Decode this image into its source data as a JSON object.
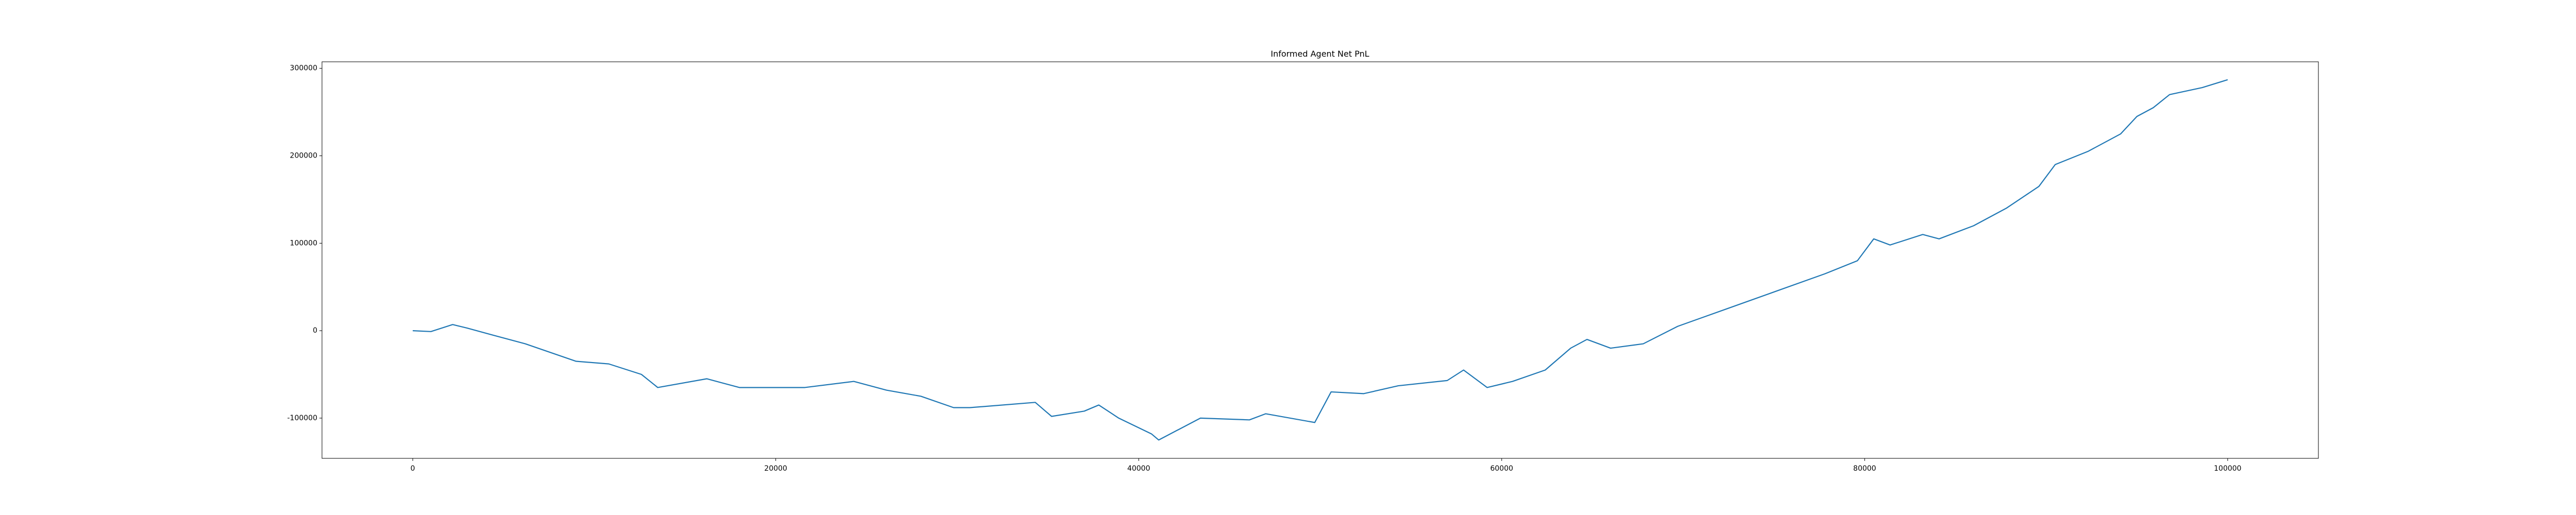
{
  "chart_data": {
    "type": "line",
    "title": "Informed Agent Net PnL",
    "x": [
      0,
      1000,
      2200,
      3000,
      4400,
      6200,
      9000,
      10800,
      12600,
      13500,
      16200,
      18000,
      20000,
      21600,
      24300,
      26100,
      28000,
      29800,
      30700,
      34300,
      35200,
      37000,
      37800,
      38900,
      40700,
      41100,
      43400,
      46100,
      47000,
      49700,
      50600,
      52400,
      54300,
      57000,
      57900,
      59200,
      60600,
      62400,
      63800,
      64700,
      66000,
      67800,
      69700,
      72400,
      75100,
      77800,
      79600,
      80500,
      81400,
      83200,
      84100,
      86000,
      87800,
      89600,
      90500,
      92300,
      94100,
      95000,
      95900,
      96800,
      98600,
      100000
    ],
    "series": [
      {
        "name": "Informed Agent Net PnL",
        "color": "#1f77b4",
        "values": [
          0,
          -1000,
          7000,
          3000,
          -5000,
          -15000,
          -35000,
          -38000,
          -50000,
          -65000,
          -55000,
          -65000,
          -65000,
          -65000,
          -58000,
          -68000,
          -75000,
          -88000,
          -88000,
          -82000,
          -98000,
          -92000,
          -85000,
          -100000,
          -118000,
          -125000,
          -100000,
          -102000,
          -95000,
          -105000,
          -70000,
          -72000,
          -63000,
          -57000,
          -45000,
          -65000,
          -58000,
          -45000,
          -20000,
          -10000,
          -20000,
          -15000,
          5000,
          25000,
          45000,
          65000,
          80000,
          105000,
          98000,
          110000,
          105000,
          120000,
          140000,
          165000,
          190000,
          205000,
          225000,
          245000,
          255000,
          270000,
          278000,
          287000
        ]
      }
    ],
    "xlim": [
      -5000,
      105000
    ],
    "xticks": [
      0,
      20000,
      40000,
      60000,
      80000,
      100000
    ],
    "ylim": [
      -146000,
      307500
    ],
    "yticks": [
      -100000,
      0,
      100000,
      200000,
      300000
    ]
  }
}
